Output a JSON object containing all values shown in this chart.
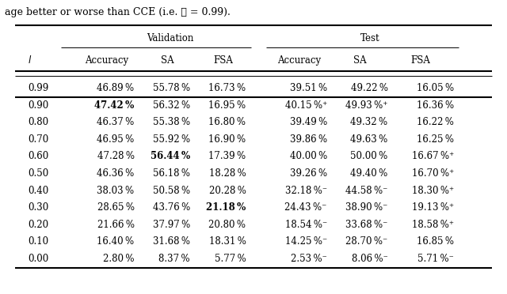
{
  "title_above": "age better or worse than CCE (i.e. ℓ = 0.99).",
  "rows": [
    [
      "0.99",
      "46.89 %",
      "55.78 %",
      "16.73 %",
      "39.51 %",
      "49.22 %",
      "16.05 %",
      false,
      false,
      false,
      false,
      false,
      false,
      false
    ],
    [
      "0.90",
      "47.42 %",
      "56.32 %",
      "16.95 %",
      "40.15 %⁺",
      "49.93 %⁺",
      "16.36 %",
      false,
      true,
      false,
      false,
      false,
      false,
      false
    ],
    [
      "0.80",
      "46.37 %",
      "55.38 %",
      "16.80 %",
      "39.49 %",
      "49.32 %",
      "16.22 %",
      false,
      false,
      false,
      false,
      false,
      false,
      false
    ],
    [
      "0.70",
      "46.95 %",
      "55.92 %",
      "16.90 %",
      "39.86 %",
      "49.63 %",
      "16.25 %",
      false,
      false,
      false,
      false,
      false,
      false,
      false
    ],
    [
      "0.60",
      "47.28 %",
      "56.44 %",
      "17.39 %",
      "40.00 %",
      "50.00 %",
      "16.67 %⁺",
      false,
      false,
      true,
      false,
      false,
      false,
      false
    ],
    [
      "0.50",
      "46.36 %",
      "56.18 %",
      "18.28 %",
      "39.26 %",
      "49.40 %",
      "16.70 %⁺",
      false,
      false,
      false,
      false,
      false,
      false,
      false
    ],
    [
      "0.40",
      "38.03 %",
      "50.58 %",
      "20.28 %",
      "32.18 %⁻",
      "44.58 %⁻",
      "18.30 %⁺",
      false,
      false,
      false,
      false,
      false,
      false,
      false
    ],
    [
      "0.30",
      "28.65 %",
      "43.76 %",
      "21.18 %",
      "24.43 %⁻",
      "38.90 %⁻",
      "19.13 %⁺",
      false,
      false,
      false,
      true,
      false,
      false,
      false
    ],
    [
      "0.20",
      "21.66 %",
      "37.97 %",
      "20.80 %",
      "18.54 %⁻",
      "33.68 %⁻",
      "18.58 %⁺",
      false,
      false,
      false,
      false,
      false,
      false,
      false
    ],
    [
      "0.10",
      "16.40 %",
      "31.68 %",
      "18.31 %",
      "14.25 %⁻",
      "28.70 %⁻",
      "16.85 %",
      false,
      false,
      false,
      false,
      false,
      false,
      false
    ],
    [
      "0.00",
      "2.80 %",
      "8.37 %",
      "5.77 %",
      "2.53 %⁻",
      "8.06 %⁻",
      "5.71 %⁻",
      false,
      false,
      false,
      false,
      false,
      false,
      false
    ]
  ],
  "col_headers": [
    "l",
    "Accuracy",
    "SA",
    "FSA",
    "Accuracy",
    "SA",
    "FSA"
  ],
  "group_headers": [
    "Validation",
    "Test"
  ],
  "background_color": "#ffffff",
  "fontsize": 8.5,
  "title_fontsize": 9.0
}
